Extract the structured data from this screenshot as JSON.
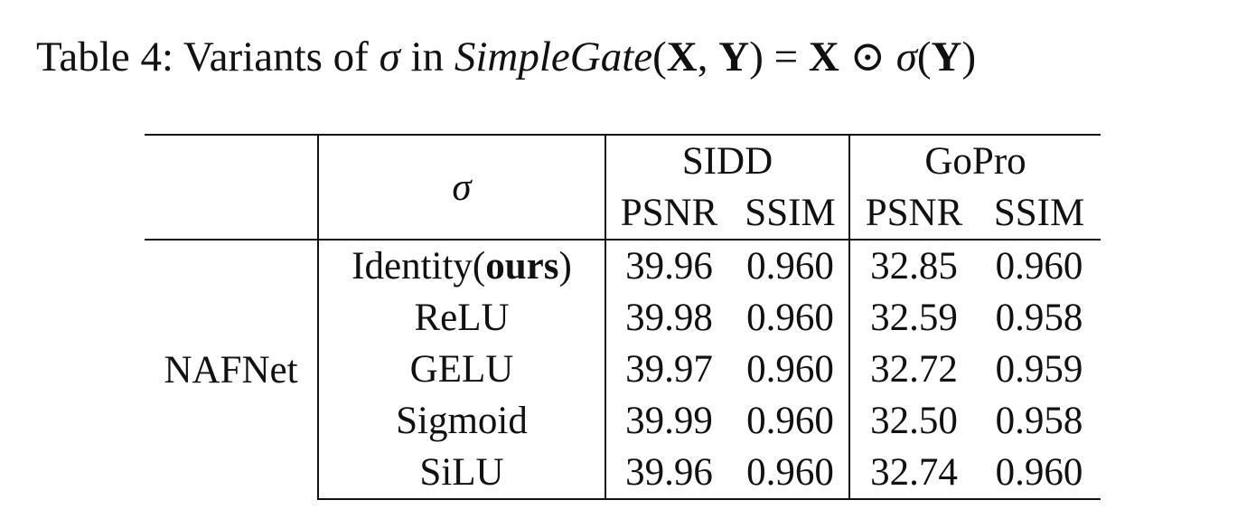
{
  "caption": {
    "prefix": "Table 4: Variants of ",
    "sigma": "σ",
    "in": " in ",
    "fn_name": "SimpleGate",
    "args_open": "(",
    "arg_x": "X",
    "comma": ", ",
    "arg_y": "Y",
    "args_close": ") = ",
    "rhs_x": "X",
    "odot": " ⊙ ",
    "rhs_sigma": "σ",
    "rhs_open": "(",
    "rhs_y": "Y",
    "rhs_close": ")"
  },
  "table": {
    "sigma_header": "σ",
    "groups": [
      "SIDD",
      "GoPro"
    ],
    "metrics": [
      "PSNR",
      "SSIM",
      "PSNR",
      "SSIM"
    ],
    "model": "NAFNet",
    "rows": [
      {
        "sigma_base": "Identity(",
        "sigma_bold": "ours",
        "sigma_tail": ")",
        "sidd_psnr": "39.96",
        "sidd_ssim": "0.960",
        "gopro_psnr": "32.85",
        "gopro_ssim": "0.960"
      },
      {
        "sigma_base": "ReLU",
        "sigma_bold": "",
        "sigma_tail": "",
        "sidd_psnr": "39.98",
        "sidd_ssim": "0.960",
        "gopro_psnr": "32.59",
        "gopro_ssim": "0.958"
      },
      {
        "sigma_base": "GELU",
        "sigma_bold": "",
        "sigma_tail": "",
        "sidd_psnr": "39.97",
        "sidd_ssim": "0.960",
        "gopro_psnr": "32.72",
        "gopro_ssim": "0.959"
      },
      {
        "sigma_base": "Sigmoid",
        "sigma_bold": "",
        "sigma_tail": "",
        "sidd_psnr": "39.99",
        "sidd_ssim": "0.960",
        "gopro_psnr": "32.50",
        "gopro_ssim": "0.958"
      },
      {
        "sigma_base": "SiLU",
        "sigma_bold": "",
        "sigma_tail": "",
        "sidd_psnr": "39.96",
        "sidd_ssim": "0.960",
        "gopro_psnr": "32.74",
        "gopro_ssim": "0.960"
      }
    ]
  }
}
